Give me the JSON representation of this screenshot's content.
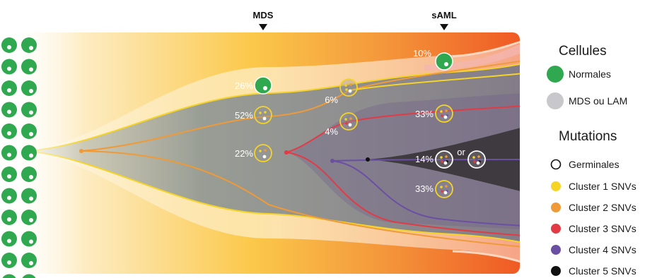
{
  "timepoints": {
    "mds": "MDS",
    "saml": "sAML"
  },
  "percentages": {
    "mds_normal": "26%",
    "mds_clone_a": "52%",
    "mds_clone_b": "22%",
    "mid_a": "6%",
    "mid_b": "4%",
    "saml_normal": "10%",
    "saml_clone_a": "33%",
    "saml_clone_b": "14%",
    "saml_clone_c": "33%",
    "or_label": "or"
  },
  "legend": {
    "cells_title": "Cellules",
    "normal": "Normales",
    "mds_lam": "MDS ou LAM",
    "mutations_title": "Mutations",
    "germline": "Germinales",
    "cluster1": "Cluster 1 SNVs",
    "cluster2": "Cluster 2 SNVs",
    "cluster3": "Cluster 3 SNVs",
    "cluster4": "Cluster 4 SNVs",
    "cluster5": "Cluster 5 SNVs"
  },
  "colors": {
    "normal": "#2fa84f",
    "mds_lam": "#c8c8cc",
    "cluster1": "#f5d327",
    "cluster2": "#ef9a38",
    "cluster3": "#e23b45",
    "cluster4": "#6a4fa3",
    "cluster5": "#111111",
    "background_start": "#fbe6a6",
    "background_end": "#f06a2a"
  }
}
